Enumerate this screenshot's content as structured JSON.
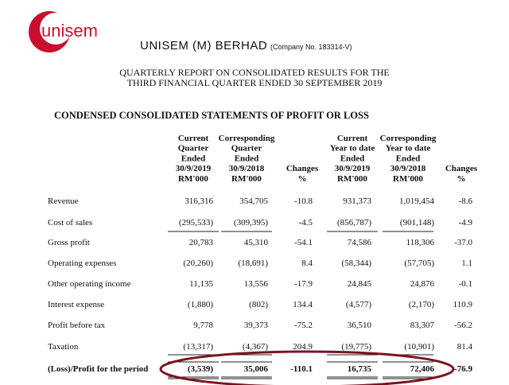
{
  "header": {
    "logo": "unisem",
    "company": "UNISEM (M) BERHAD",
    "company_no": "(Company No. 183314-V)"
  },
  "report_title": [
    "QUARTERLY REPORT ON CONSOLIDATED RESULTS FOR THE",
    "THIRD FINANCIAL QUARTER ENDED 30 SEPTEMBER 2019"
  ],
  "section_title": "CONDENSED CONSOLIDATED STATEMENTS OF PROFIT OR LOSS",
  "table": {
    "columns": [
      [
        "Current",
        "Quarter",
        "Ended",
        "30/9/2019",
        "RM'000"
      ],
      [
        "Corresponding",
        "Quarter",
        "Ended",
        "30/9/2018",
        "RM'000"
      ],
      [
        "Changes",
        "%"
      ],
      [
        "Current",
        "Year to date",
        "Ended",
        "30/9/2019",
        "RM'000"
      ],
      [
        "Corresponding",
        "Year to date",
        "Ended",
        "30/9/2018",
        "RM'000"
      ],
      [
        "Changes",
        "%"
      ]
    ],
    "rows": [
      [
        "Revenue",
        "316,316",
        "354,705",
        "-10.8",
        "931,373",
        "1,019,454",
        "-8.6"
      ],
      [
        "Cost of sales",
        "(295,533)",
        "(309,395)",
        "-4.5",
        "(856,787)",
        "(901,148)",
        "-4.9"
      ],
      [
        "Gross profit",
        "20,783",
        "45,310",
        "-54.1",
        "74,586",
        "118,306",
        "-37.0"
      ],
      [
        "Operating expenses",
        "(20,260)",
        "(18,691)",
        "8.4",
        "(58,344)",
        "(57,705)",
        "1.1"
      ],
      [
        "Other operating income",
        "11,135",
        "13,556",
        "-17.9",
        "24,845",
        "24,876",
        "-0.1"
      ],
      [
        "Interest expense",
        "(1,880)",
        "(802)",
        "134.4",
        "(4,577)",
        "(2,170)",
        "110.9"
      ],
      [
        "Profit before tax",
        "9,778",
        "39,373",
        "-75.2",
        "36,510",
        "83,307",
        "-56.2"
      ],
      [
        "Taxation",
        "(13,317)",
        "(4,367)",
        "204.9",
        "(19,775)",
        "(10,901)",
        "81.4"
      ],
      [
        "(Loss)/Profit for the period",
        "(3,539)",
        "35,006",
        "-110.1",
        "16,735",
        "72,406",
        "-76.9"
      ]
    ]
  }
}
